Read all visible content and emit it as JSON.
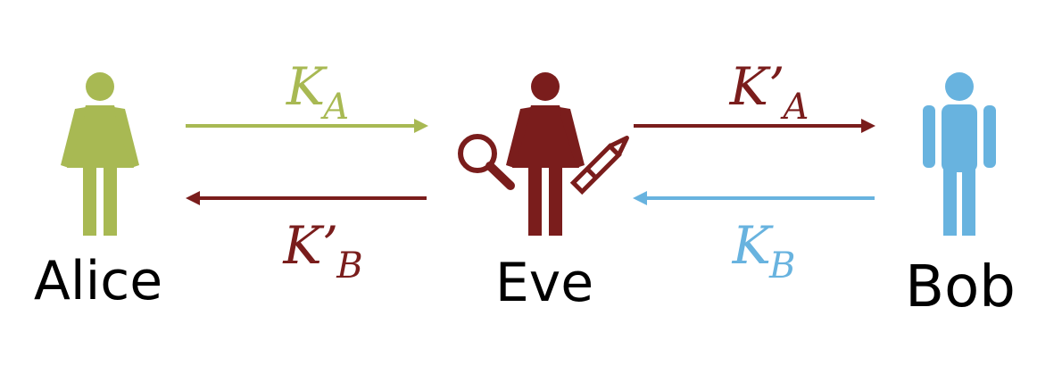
{
  "colors": {
    "alice": "#a8b953",
    "eve": "#7a1d1c",
    "bob": "#68b3df",
    "text": "#000000"
  },
  "people": {
    "alice": {
      "name": "Alice",
      "icon": "woman-figure-icon"
    },
    "eve": {
      "name": "Eve",
      "icon": "woman-figure-icon",
      "tools": [
        "magnifying-glass-icon",
        "pen-icon"
      ]
    },
    "bob": {
      "name": "Bob",
      "icon": "man-figure-icon"
    }
  },
  "keys": {
    "alice_to_eve": {
      "base": "K",
      "sub": "A"
    },
    "eve_to_alice": {
      "base": "K’",
      "sub": "B"
    },
    "eve_to_bob": {
      "base": "K’",
      "sub": "A"
    },
    "bob_to_eve": {
      "base": "K",
      "sub": "B"
    }
  }
}
